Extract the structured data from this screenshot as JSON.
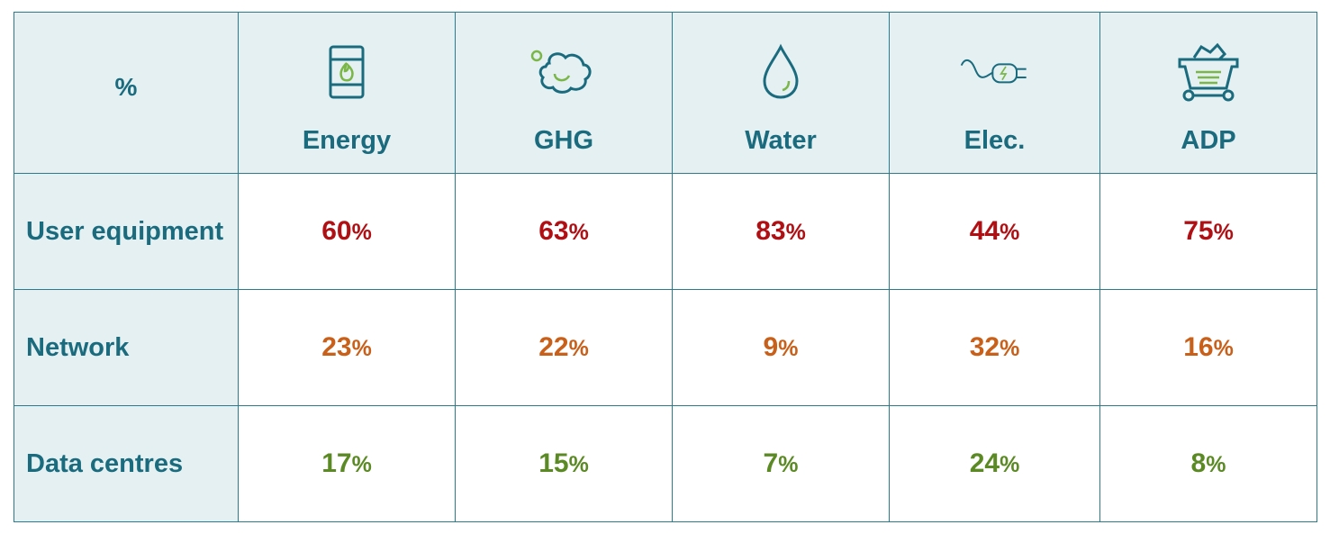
{
  "corner": "%",
  "columns": [
    {
      "label": "Energy",
      "icon": "oil-barrel-flame-icon"
    },
    {
      "label": "GHG",
      "icon": "gas-cloud-icon"
    },
    {
      "label": "Water",
      "icon": "water-drop-icon"
    },
    {
      "label": "Elec.",
      "icon": "electric-plug-icon"
    },
    {
      "label": "ADP",
      "icon": "mining-cart-icon"
    }
  ],
  "rows": [
    {
      "label": "User equipment",
      "color": "#b00f14",
      "values": [
        "60",
        "63",
        "83",
        "44",
        "75"
      ]
    },
    {
      "label": "Network",
      "color": "#c9601a",
      "values": [
        "23",
        "22",
        "9",
        "32",
        "16"
      ]
    },
    {
      "label": "Data centres",
      "color": "#5b8a24",
      "values": [
        "17",
        "15",
        "7",
        "24",
        "8"
      ]
    }
  ],
  "unit": "%",
  "colors": {
    "header_bg": "#e5f0f2",
    "header_text": "#1a6b7e",
    "border": "#2d7a8c",
    "icon_accent": "#7ab648"
  }
}
